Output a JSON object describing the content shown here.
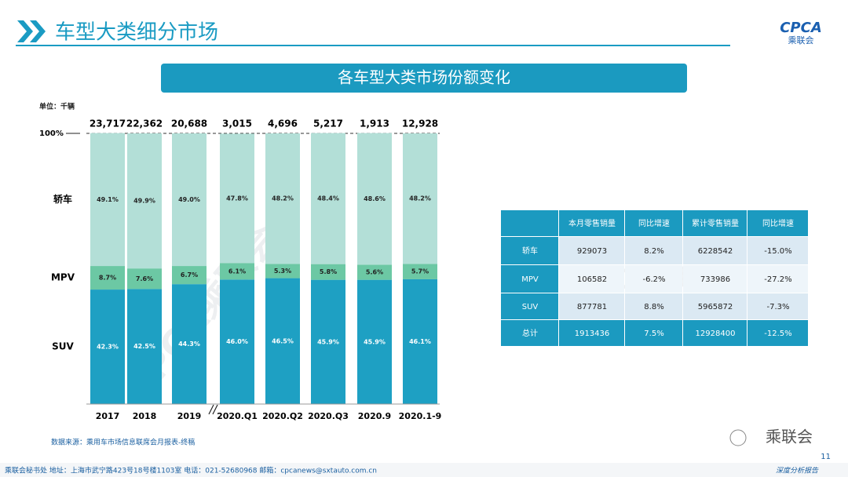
{
  "header": {
    "title": "车型大类细分市场",
    "logo_text": "CPCA",
    "logo_sub": "乘联会"
  },
  "chart_data": {
    "type": "stacked-bar",
    "title": "各车型大类市场份额变化",
    "unit": "单位：千辆",
    "categories": [
      "2017",
      "2018",
      "2019",
      "2020.Q1",
      "2020.Q2",
      "2020.Q3",
      "2020.9",
      "2020.1-9"
    ],
    "totals": {
      "values": [
        23717,
        22362,
        20688,
        3015,
        4696,
        5217,
        1913,
        12928
      ],
      "value_labels": [
        "23,717",
        "22,362",
        "20,688",
        "3,015",
        "4,696",
        "5,217",
        "1,913",
        "12,928"
      ]
    },
    "series": [
      {
        "name": "SUV",
        "color": "#1ea0c3",
        "values": [
          42.3,
          42.5,
          44.3,
          46.0,
          46.5,
          45.9,
          45.9,
          46.1
        ],
        "value_labels": [
          "42.3%",
          "42.5%",
          "44.3%",
          "46.0%",
          "46.5%",
          "45.9%",
          "45.9%",
          "46.1%"
        ]
      },
      {
        "name": "MPV",
        "color": "#6cc8a4",
        "values": [
          8.7,
          7.6,
          6.7,
          6.1,
          5.3,
          5.8,
          5.6,
          5.7
        ],
        "value_labels": [
          "8.7%",
          "7.6%",
          "6.7%",
          "6.1%",
          "5.3%",
          "5.8%",
          "5.6%",
          "5.7%"
        ]
      },
      {
        "name": "轿车",
        "color": "#b3dfd7",
        "values": [
          49.1,
          49.9,
          49.0,
          47.8,
          48.2,
          48.4,
          48.6,
          48.2
        ],
        "value_labels": [
          "49.1%",
          "49.9%",
          "49.0%",
          "47.8%",
          "48.2%",
          "48.4%",
          "48.6%",
          "48.2%"
        ]
      }
    ],
    "ylim": [
      0,
      100
    ],
    "yticks": [
      {
        "value": 100,
        "label": "100%"
      }
    ],
    "source": "数据来源：乘用车市场信息联席会月报表-终稿"
  },
  "table": {
    "header": [
      "",
      "本月零售销量",
      "同比增速",
      "累计零售销量",
      "同比增速"
    ],
    "rows": [
      [
        "轿车",
        "929073",
        "8.2%",
        "6228542",
        "-15.0%"
      ],
      [
        "MPV",
        "106582",
        "-6.2%",
        "733986",
        "-27.2%"
      ],
      [
        "SUV",
        "877781",
        "8.8%",
        "5965872",
        "-7.3%"
      ],
      [
        "总计",
        "1913436",
        "7.5%",
        "12928400",
        "-12.5%"
      ]
    ]
  },
  "watermark": "CPCA乘联会",
  "footer": {
    "address": "乘联会秘书处   地址：上海市武宁路423号18号楼1103室   电话：021-52680968   邮箱：cpcanews@sxtauto.com.cn",
    "page": "11",
    "tag": "深度分析报告",
    "wechat": "乘联会"
  }
}
